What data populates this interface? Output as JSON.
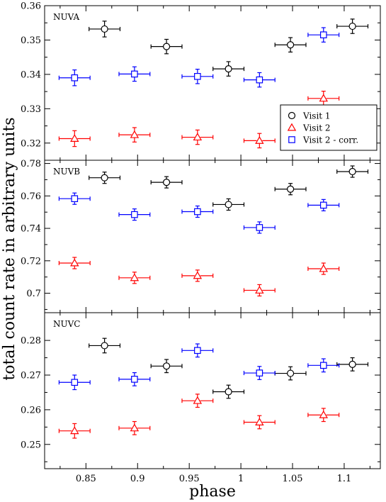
{
  "chart_data": {
    "type": "scatter",
    "xlabel": "phase",
    "ylabel": "total count rate in arbitrary units",
    "xlim": [
      0.81,
      1.135
    ],
    "xticks": [
      "0.85",
      "0.9",
      "0.95",
      "1",
      "1.05",
      "1.1"
    ],
    "xtick_values": [
      0.85,
      0.9,
      0.95,
      1.0,
      1.05,
      1.1
    ],
    "legend": {
      "panel": "NUVA",
      "placement": "right",
      "entries": [
        "Visit 1",
        "Visit 2",
        "Visit 2 - corr."
      ]
    },
    "series_style": [
      {
        "name": "Visit 1",
        "marker": "circle",
        "color": "#000000"
      },
      {
        "name": "Visit 2",
        "marker": "triangle",
        "color": "#ff0000"
      },
      {
        "name": "Visit 2 - corr.",
        "marker": "square",
        "color": "#0000ff"
      }
    ],
    "panels": [
      {
        "label": "NUVA",
        "ylim": [
          0.315,
          0.36
        ],
        "yticks": [
          "0.32",
          "0.33",
          "0.34",
          "0.35",
          "0.36"
        ],
        "ytick_values": [
          0.32,
          0.33,
          0.34,
          0.35,
          0.36
        ],
        "series": [
          {
            "name": "Visit 1",
            "x": [
              0.868,
              0.928,
              0.988,
              1.048,
              1.108
            ],
            "y": [
              0.3532,
              0.3481,
              0.3416,
              0.3486,
              0.354
            ],
            "yerr": [
              0.0023,
              0.0021,
              0.0021,
              0.0021,
              0.0021
            ],
            "xerr": 0.015
          },
          {
            "name": "Visit 2",
            "x": [
              0.839,
              0.897,
              0.958,
              1.018,
              1.08
            ],
            "y": [
              0.3213,
              0.3224,
              0.3217,
              0.3207,
              0.333
            ],
            "yerr": [
              0.0023,
              0.0021,
              0.0021,
              0.0021,
              0.0021
            ],
            "xerr": 0.015
          },
          {
            "name": "Visit 2 - corr.",
            "x": [
              0.839,
              0.897,
              0.958,
              1.018,
              1.08
            ],
            "y": [
              0.339,
              0.3401,
              0.3394,
              0.3384,
              0.3515
            ],
            "yerr": [
              0.0023,
              0.0021,
              0.0021,
              0.0021,
              0.0021
            ],
            "xerr": 0.015
          }
        ]
      },
      {
        "label": "NUVB",
        "ylim": [
          0.688,
          0.782
        ],
        "yticks": [
          "0.7",
          "0.72",
          "0.74",
          "0.76",
          "0.78"
        ],
        "ytick_values": [
          0.7,
          0.72,
          0.74,
          0.76,
          0.78
        ],
        "series": [
          {
            "name": "Visit 1",
            "x": [
              0.868,
              0.928,
              0.988,
              1.048,
              1.108
            ],
            "y": [
              0.7712,
              0.7684,
              0.7547,
              0.7642,
              0.775
            ],
            "yerr": [
              0.0035,
              0.0035,
              0.0035,
              0.0035,
              0.0035
            ],
            "xerr": 0.015
          },
          {
            "name": "Visit 2",
            "x": [
              0.839,
              0.897,
              0.958,
              1.018,
              1.08
            ],
            "y": [
              0.7186,
              0.7095,
              0.7108,
              0.7018,
              0.7151
            ],
            "yerr": [
              0.0035,
              0.0035,
              0.0035,
              0.0035,
              0.0035
            ],
            "xerr": 0.015
          },
          {
            "name": "Visit 2 - corr.",
            "x": [
              0.839,
              0.897,
              0.958,
              1.018,
              1.08
            ],
            "y": [
              0.7583,
              0.7485,
              0.7503,
              0.7405,
              0.7543
            ],
            "yerr": [
              0.0035,
              0.0035,
              0.0035,
              0.0035,
              0.0035
            ],
            "xerr": 0.015
          }
        ]
      },
      {
        "label": "NUVC",
        "ylim": [
          0.243,
          0.288
        ],
        "yticks": [
          "0.25",
          "0.26",
          "0.27",
          "0.28"
        ],
        "ytick_values": [
          0.25,
          0.26,
          0.27,
          0.28
        ],
        "series": [
          {
            "name": "Visit 1",
            "x": [
              0.868,
              0.928,
              0.988,
              1.048,
              1.108
            ],
            "y": [
              0.2785,
              0.2726,
              0.2652,
              0.2705,
              0.2731
            ],
            "yerr": [
              0.0021,
              0.0019,
              0.0019,
              0.0019,
              0.0019
            ],
            "xerr": 0.015
          },
          {
            "name": "Visit 2",
            "x": [
              0.839,
              0.897,
              0.958,
              1.018,
              1.08
            ],
            "y": [
              0.2539,
              0.2547,
              0.2626,
              0.2564,
              0.2585
            ],
            "yerr": [
              0.0021,
              0.0019,
              0.0019,
              0.0019,
              0.0019
            ],
            "xerr": 0.015
          },
          {
            "name": "Visit 2 - corr.",
            "x": [
              0.839,
              0.897,
              0.958,
              1.018,
              1.08
            ],
            "y": [
              0.2679,
              0.2688,
              0.2771,
              0.2706,
              0.2728
            ],
            "yerr": [
              0.0021,
              0.0019,
              0.0019,
              0.0019,
              0.0019
            ],
            "xerr": 0.015
          }
        ]
      }
    ]
  }
}
